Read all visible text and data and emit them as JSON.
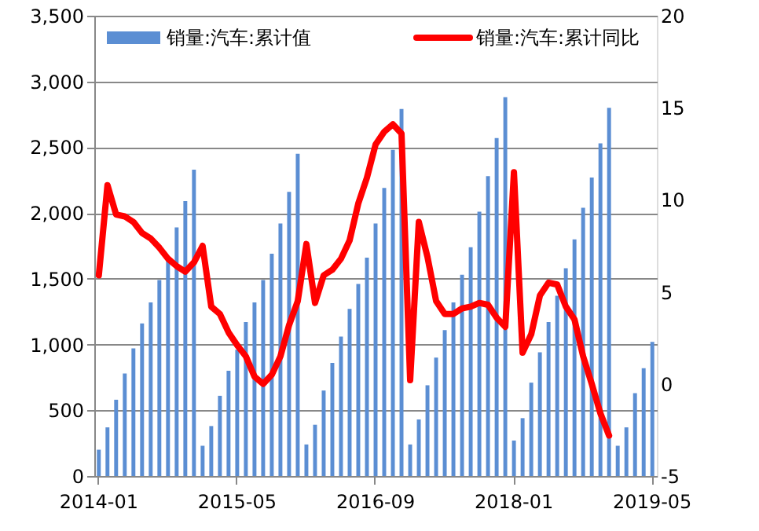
{
  "chart_data": {
    "type": "bar",
    "categories": [
      "2014-01",
      null,
      null,
      null,
      null,
      null,
      null,
      null,
      null,
      null,
      null,
      null,
      null,
      null,
      null,
      null,
      "2015-05",
      null,
      null,
      null,
      null,
      null,
      null,
      null,
      null,
      null,
      null,
      null,
      null,
      null,
      null,
      null,
      "2016-09",
      null,
      null,
      null,
      null,
      null,
      null,
      null,
      null,
      null,
      null,
      null,
      null,
      null,
      null,
      null,
      "2018-01",
      null,
      null,
      null,
      null,
      null,
      null,
      null,
      null,
      null,
      null,
      null,
      null,
      null,
      null,
      null,
      "2019-05"
    ],
    "series": [
      {
        "name": "销量:汽车:累计值",
        "color": "#5b8ed3",
        "values": [
          200,
          370,
          580,
          780,
          970,
          1160,
          1320,
          1490,
          1640,
          1890,
          2090,
          2330,
          230,
          380,
          610,
          800,
          960,
          1170,
          1320,
          1490,
          1690,
          1920,
          2160,
          2450,
          240,
          390,
          650,
          860,
          1060,
          1270,
          1460,
          1660,
          1920,
          2190,
          2480,
          2790,
          240,
          430,
          690,
          900,
          1110,
          1320,
          1530,
          1740,
          2010,
          2280,
          2570,
          2880,
          270,
          440,
          710,
          940,
          1170,
          1370,
          1580,
          1800,
          2040,
          2270,
          2530,
          2800,
          230,
          370,
          630,
          820,
          1020
        ]
      },
      {
        "name": "销量:汽车:累计同比",
        "type": "line",
        "axis": "y2",
        "color": "#ff0000",
        "values": [
          5.9,
          10.8,
          9.2,
          9.1,
          8.8,
          8.2,
          7.9,
          7.4,
          6.8,
          6.4,
          6.1,
          6.6,
          7.5,
          4.2,
          3.8,
          2.8,
          2.1,
          1.5,
          0.4,
          0.0,
          0.5,
          1.5,
          3.2,
          4.5,
          7.6,
          4.4,
          5.9,
          6.2,
          6.8,
          7.8,
          9.8,
          11.2,
          13.0,
          13.7,
          14.1,
          13.6,
          0.2,
          8.8,
          6.9,
          4.5,
          3.8,
          3.8,
          4.1,
          4.2,
          4.4,
          4.3,
          3.6,
          3.1,
          11.5,
          1.7,
          2.7,
          4.8,
          5.5,
          5.4,
          4.2,
          3.5,
          1.5,
          0.0,
          -1.6,
          -2.8,
          null,
          null,
          null,
          null,
          null
        ]
      }
    ],
    "ylim": [
      0,
      3500
    ],
    "yticks": [
      0,
      500,
      {
        "value": 1000,
        "label": "1,000"
      },
      {
        "value": 1500,
        "label": "1,500"
      },
      {
        "value": 2000,
        "label": "2,000"
      },
      {
        "value": 2500,
        "label": "2,500"
      },
      {
        "value": 3000,
        "label": "3,000"
      },
      {
        "value": 3500,
        "label": "3,500"
      }
    ],
    "y2lim": [
      -5,
      20
    ],
    "y2ticks": [
      -5,
      0,
      5,
      10,
      15,
      20
    ],
    "grid": "y",
    "legend": "top"
  }
}
